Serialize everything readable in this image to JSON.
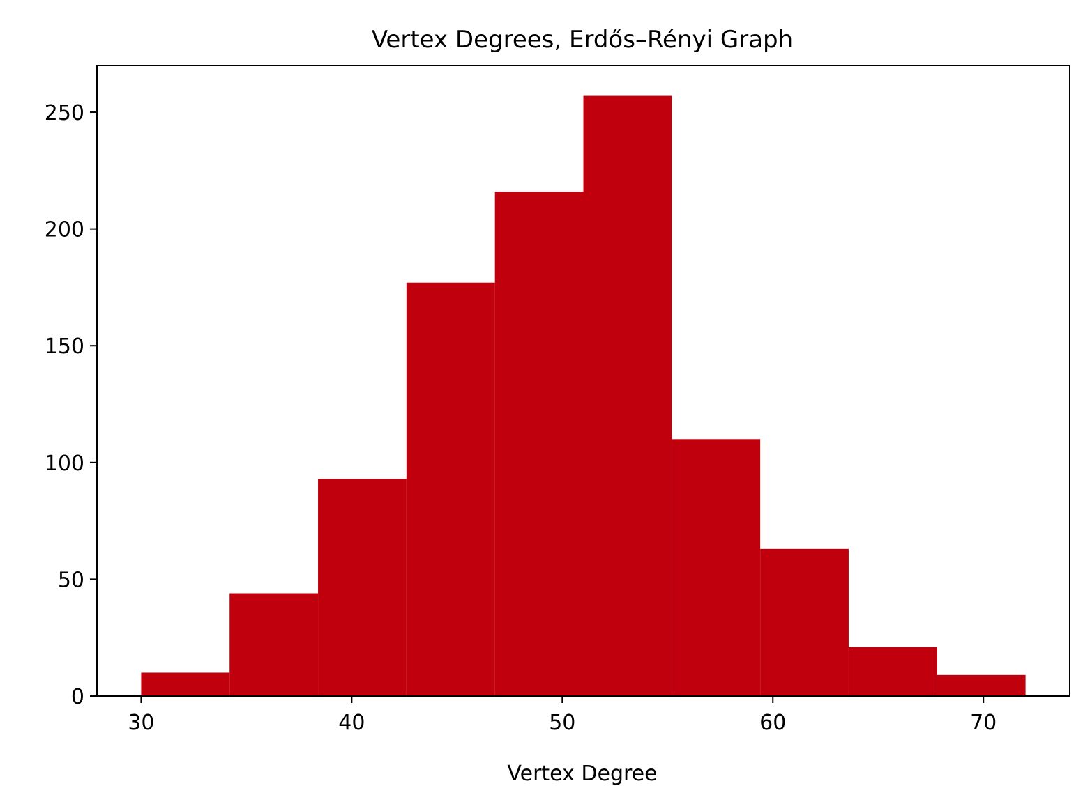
{
  "chart_data": {
    "type": "bar",
    "title": "Vertex Degrees, Erdős–Rényi Graph",
    "xlabel": "Vertex Degree",
    "ylabel": "",
    "bin_edges": [
      30,
      34.2,
      38.4,
      42.6,
      46.8,
      51,
      55.2,
      59.4,
      63.6,
      67.8,
      72
    ],
    "values": [
      10,
      44,
      93,
      177,
      216,
      257,
      110,
      63,
      21,
      9
    ],
    "xlim": [
      27.9,
      74.1
    ],
    "ylim": [
      0,
      270
    ],
    "xticks": [
      30,
      40,
      50,
      60,
      70
    ],
    "xtick_labels": [
      "30",
      "40",
      "50",
      "60",
      "70"
    ],
    "yticks": [
      0,
      50,
      100,
      150,
      200,
      250
    ],
    "ytick_labels": [
      "0",
      "50",
      "100",
      "150",
      "200",
      "250"
    ],
    "bar_color": "#c1000d",
    "grid": false,
    "legend": "none"
  }
}
